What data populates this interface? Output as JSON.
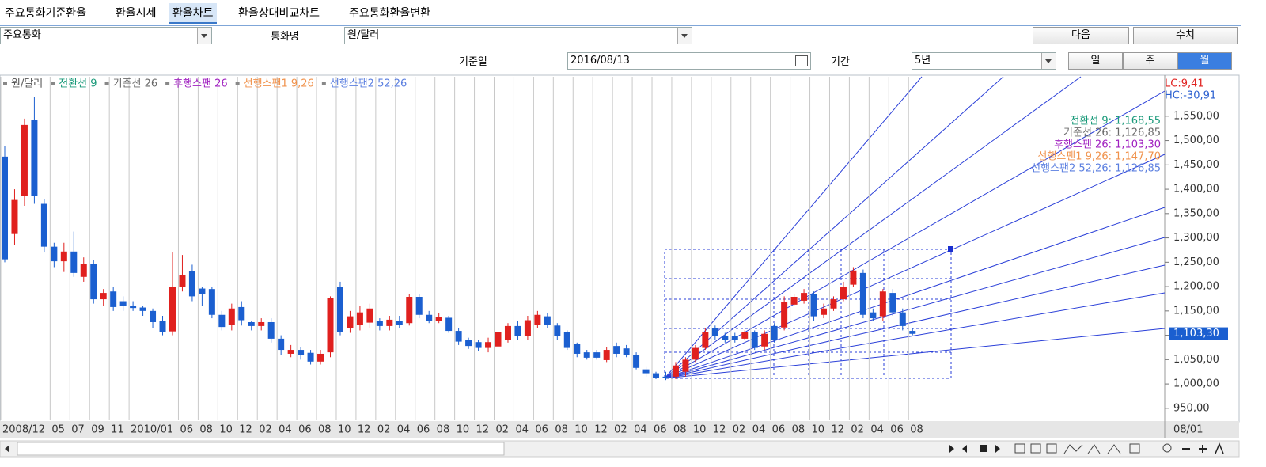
{
  "tabs": [
    "주요통화기준환율",
    "환율시세",
    "환율차트",
    "환율상대비교차트",
    "주요통화환율변환"
  ],
  "selected_tab": 2,
  "controls": {
    "currency_group": "주요통화",
    "pair_label": "통화명",
    "pair": "원/달러",
    "next": "다음",
    "values": "수치",
    "date_label": "기준일",
    "date": "2016/08/13",
    "period_label": "기간",
    "period": "5년",
    "intervals": [
      "일",
      "주",
      "월"
    ],
    "selected_interval": 2
  },
  "chart_data": {
    "type": "candlestick",
    "legend": [
      {
        "name": "원/달러",
        "color": "#555555"
      },
      {
        "name": "전환선 9",
        "color": "#1a9a7a"
      },
      {
        "name": "기준선 26",
        "color": "#6a6a6a"
      },
      {
        "name": "후행스팬 26",
        "color": "#a020c0"
      },
      {
        "name": "선행스팬1 9,26",
        "color": "#f0924c"
      },
      {
        "name": "선행스팬2 52,26",
        "color": "#5b7fe0"
      }
    ],
    "readouts": [
      {
        "text": "전환선 9: 1,168,55",
        "color": "#1a9a7a"
      },
      {
        "text": "기준선 26: 1,126,85",
        "color": "#6a6a6a"
      },
      {
        "text": "후행스팬 26: 1,103,30",
        "color": "#a020c0"
      },
      {
        "text": "선행스팬1 9,26: 1,147,70",
        "color": "#f0924c"
      },
      {
        "text": "선행스팬2 52,26: 1,126,85",
        "color": "#5b7fe0"
      }
    ],
    "lc": "LC:9,41",
    "hc": "HC:-30,91",
    "axis_end_label": "08/01",
    "categories": [
      "2008/12",
      null,
      null,
      null,
      null,
      "05",
      null,
      "07",
      null,
      "09",
      null,
      "11",
      null,
      "2010/01",
      null,
      null,
      null,
      null,
      "06",
      null,
      "08",
      null,
      "10",
      null,
      "12",
      null,
      "02",
      null,
      "04",
      null,
      "06",
      null,
      "08",
      null,
      "10",
      null,
      "12",
      null,
      "02",
      null,
      "04",
      null,
      "06",
      null,
      "08",
      null,
      "10",
      null,
      "12",
      null,
      "02",
      null,
      "04",
      null,
      "06",
      null,
      "08",
      null,
      "10",
      null,
      "12",
      null,
      "02",
      null,
      "04",
      null,
      "06",
      null,
      "08",
      null,
      "10",
      null,
      "12",
      null,
      "02",
      null,
      "04",
      null,
      "06",
      null,
      "08",
      null,
      "10",
      null,
      "12",
      null,
      "02",
      null,
      "04",
      null,
      "06",
      null,
      "08"
    ],
    "open": [
      1467,
      1308,
      1386,
      1542,
      1370,
      1282,
      1252,
      1272,
      1220,
      1247,
      1174,
      1190,
      1170,
      1160,
      1157,
      1150,
      1130,
      1108,
      1200,
      1232,
      1196,
      1195,
      1142,
      1122,
      1158,
      1127,
      1119,
      1127,
      1093,
      1062,
      1070,
      1064,
      1046,
      1065,
      1200,
      1114,
      1122,
      1126,
      1130,
      1119,
      1130,
      1125,
      1179,
      1142,
      1129,
      1136,
      1109,
      1090,
      1086,
      1074,
      1077,
      1090,
      1119,
      1098,
      1122,
      1139,
      1120,
      1106,
      1082,
      1065,
      1065,
      1049,
      1078,
      1073,
      1060,
      1030,
      1022,
      1015,
      1015,
      1025,
      1050,
      1074,
      1114,
      1098,
      1098,
      1093,
      1106,
      1077,
      1119,
      1116,
      1163,
      1171,
      1184,
      1142,
      1155,
      1174,
      1204,
      1228,
      1147,
      1139,
      1187,
      1147,
      1109
    ],
    "close": [
      1256,
      1378,
      1532,
      1386,
      1282,
      1252,
      1272,
      1228,
      1247,
      1174,
      1187,
      1158,
      1160,
      1156,
      1150,
      1127,
      1106,
      1200,
      1223,
      1180,
      1184,
      1142,
      1117,
      1155,
      1131,
      1119,
      1127,
      1093,
      1070,
      1070,
      1060,
      1046,
      1062,
      1176,
      1106,
      1139,
      1147,
      1155,
      1119,
      1132,
      1122,
      1179,
      1142,
      1129,
      1137,
      1109,
      1087,
      1078,
      1074,
      1086,
      1106,
      1119,
      1098,
      1131,
      1142,
      1122,
      1098,
      1074,
      1062,
      1054,
      1054,
      1070,
      1062,
      1060,
      1033,
      1022,
      1012,
      1012,
      1038,
      1050,
      1074,
      1106,
      1098,
      1090,
      1090,
      1106,
      1074,
      1103,
      1090,
      1168,
      1179,
      1187,
      1139,
      1155,
      1174,
      1200,
      1233,
      1142,
      1135,
      1190,
      1147,
      1119,
      1103
    ],
    "high": [
      1488,
      1400,
      1545,
      1590,
      1380,
      1290,
      1290,
      1313,
      1260,
      1255,
      1195,
      1200,
      1180,
      1170,
      1160,
      1155,
      1140,
      1270,
      1265,
      1245,
      1200,
      1200,
      1150,
      1165,
      1170,
      1130,
      1135,
      1135,
      1100,
      1080,
      1075,
      1070,
      1070,
      1180,
      1210,
      1150,
      1160,
      1165,
      1135,
      1140,
      1140,
      1185,
      1185,
      1150,
      1145,
      1140,
      1115,
      1095,
      1090,
      1095,
      1115,
      1125,
      1130,
      1140,
      1150,
      1145,
      1125,
      1110,
      1085,
      1070,
      1070,
      1075,
      1085,
      1080,
      1065,
      1035,
      1025,
      1025,
      1045,
      1055,
      1080,
      1115,
      1120,
      1105,
      1105,
      1110,
      1110,
      1110,
      1125,
      1180,
      1185,
      1195,
      1190,
      1165,
      1180,
      1210,
      1240,
      1235,
      1155,
      1195,
      1195,
      1155,
      1115
    ],
    "low": [
      1250,
      1285,
      1366,
      1370,
      1270,
      1240,
      1230,
      1220,
      1210,
      1165,
      1160,
      1150,
      1150,
      1150,
      1140,
      1115,
      1100,
      1100,
      1190,
      1170,
      1160,
      1135,
      1110,
      1110,
      1120,
      1110,
      1110,
      1085,
      1060,
      1055,
      1050,
      1040,
      1040,
      1055,
      1100,
      1105,
      1110,
      1115,
      1110,
      1110,
      1115,
      1120,
      1135,
      1125,
      1125,
      1105,
      1080,
      1072,
      1068,
      1065,
      1070,
      1085,
      1090,
      1090,
      1115,
      1115,
      1090,
      1070,
      1055,
      1050,
      1050,
      1045,
      1055,
      1055,
      1030,
      1015,
      1010,
      1008,
      1010,
      1015,
      1045,
      1070,
      1090,
      1085,
      1085,
      1090,
      1070,
      1070,
      1085,
      1110,
      1160,
      1165,
      1130,
      1135,
      1150,
      1170,
      1200,
      1135,
      1130,
      1130,
      1140,
      1110,
      1100
    ],
    "up_color": "#e0201e",
    "down_color": "#1b5fd0",
    "ylim": [
      927,
      1631
    ],
    "yticks": [
      {
        "value": 950,
        "label": "950,00"
      },
      {
        "value": 1000,
        "label": "1,000,00"
      },
      {
        "value": 1050,
        "label": "1,050,00"
      },
      {
        "value": 1100,
        "label": "1,100,00"
      },
      {
        "value": 1150,
        "label": "1,150,00"
      },
      {
        "value": 1200,
        "label": "1,200,00"
      },
      {
        "value": 1250,
        "label": "1,250,00"
      },
      {
        "value": 1300,
        "label": "1,300,00"
      },
      {
        "value": 1350,
        "label": "1,350,00"
      },
      {
        "value": 1400,
        "label": "1,400,00"
      },
      {
        "value": 1450,
        "label": "1,450,00"
      },
      {
        "value": 1500,
        "label": "1,500,00"
      },
      {
        "value": 1550,
        "label": "1,550,00"
      }
    ],
    "last_price": {
      "value": 1103.3,
      "label": "1,103,30"
    },
    "grid": "x"
  }
}
